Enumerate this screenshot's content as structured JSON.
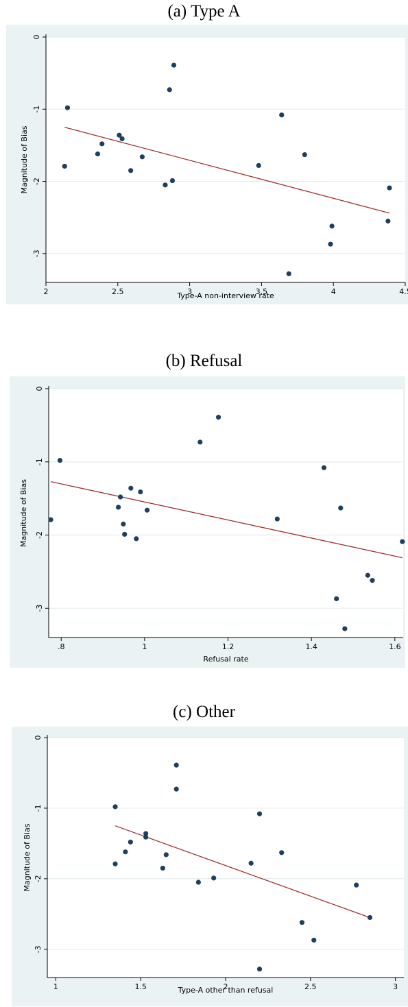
{
  "chart_data": [
    {
      "type": "scatter",
      "title": "(a) Type A",
      "xlabel": "Type-A non-interview rate",
      "ylabel": "Magnitude of Bias",
      "xlim": [
        2,
        4.5
      ],
      "ylim": [
        -3.4,
        0
      ],
      "xticks": [
        "2",
        "2.5",
        "3",
        "3.5",
        "4",
        "4.5"
      ],
      "xtick_values": [
        2,
        2.5,
        3,
        3.5,
        4,
        4.5
      ],
      "yticks": [
        "0",
        "-1",
        "-2",
        "-3"
      ],
      "ytick_values": [
        0,
        -1,
        -2,
        -3
      ],
      "grid": true,
      "points": [
        {
          "x": 2.13,
          "y": -1.79
        },
        {
          "x": 2.15,
          "y": -0.98
        },
        {
          "x": 2.36,
          "y": -1.62
        },
        {
          "x": 2.39,
          "y": -1.48
        },
        {
          "x": 2.51,
          "y": -1.36
        },
        {
          "x": 2.53,
          "y": -1.41
        },
        {
          "x": 2.59,
          "y": -1.85
        },
        {
          "x": 2.67,
          "y": -1.66
        },
        {
          "x": 2.83,
          "y": -2.05
        },
        {
          "x": 2.86,
          "y": -0.73
        },
        {
          "x": 2.88,
          "y": -1.99
        },
        {
          "x": 2.89,
          "y": -0.39
        },
        {
          "x": 3.48,
          "y": -1.78
        },
        {
          "x": 3.64,
          "y": -1.08
        },
        {
          "x": 3.69,
          "y": -3.28
        },
        {
          "x": 3.8,
          "y": -1.63
        },
        {
          "x": 3.98,
          "y": -2.87
        },
        {
          "x": 3.99,
          "y": -2.62
        },
        {
          "x": 4.38,
          "y": -2.55
        },
        {
          "x": 4.39,
          "y": -2.09
        }
      ],
      "fit_line": {
        "x": [
          2.13,
          4.39
        ],
        "y": [
          -1.25,
          -2.44
        ]
      },
      "colors": {
        "point": "#1f3f5f",
        "fit": "#a0322d",
        "grid": "#ffffff",
        "plot_bg": "#ffffff",
        "frame_bg": "#eaf2f3"
      }
    },
    {
      "type": "scatter",
      "title": "(b) Refusal",
      "xlabel": "Refusal rate",
      "ylabel": "Magnitude of Bias",
      "xlim": [
        0.77,
        1.62
      ],
      "ylim": [
        -3.4,
        0
      ],
      "xticks": [
        ".8",
        "1",
        "1.2",
        "1.4",
        "1.6"
      ],
      "xtick_values": [
        0.8,
        1,
        1.2,
        1.4,
        1.6
      ],
      "yticks": [
        "0",
        "-1",
        "-2",
        "-3"
      ],
      "ytick_values": [
        0,
        -1,
        -2,
        -3
      ],
      "grid": true,
      "points": [
        {
          "x": 0.775,
          "y": -1.79
        },
        {
          "x": 0.797,
          "y": -0.98
        },
        {
          "x": 0.937,
          "y": -1.62
        },
        {
          "x": 0.942,
          "y": -1.48
        },
        {
          "x": 0.949,
          "y": -1.85
        },
        {
          "x": 0.952,
          "y": -1.99
        },
        {
          "x": 0.967,
          "y": -1.36
        },
        {
          "x": 0.98,
          "y": -2.05
        },
        {
          "x": 0.99,
          "y": -1.41
        },
        {
          "x": 1.006,
          "y": -1.66
        },
        {
          "x": 1.133,
          "y": -0.73
        },
        {
          "x": 1.177,
          "y": -0.39
        },
        {
          "x": 1.318,
          "y": -1.78
        },
        {
          "x": 1.43,
          "y": -1.08
        },
        {
          "x": 1.46,
          "y": -2.87
        },
        {
          "x": 1.47,
          "y": -1.63
        },
        {
          "x": 1.48,
          "y": -3.28
        },
        {
          "x": 1.535,
          "y": -2.55
        },
        {
          "x": 1.546,
          "y": -2.62
        },
        {
          "x": 1.618,
          "y": -2.09
        }
      ],
      "fit_line": {
        "x": [
          0.775,
          1.618
        ],
        "y": [
          -1.27,
          -2.31
        ]
      },
      "colors": {
        "point": "#1f3f5f",
        "fit": "#a0322d",
        "grid": "#ffffff",
        "plot_bg": "#ffffff",
        "frame_bg": "#eaf2f3"
      }
    },
    {
      "type": "scatter",
      "title": "(c) Other",
      "xlabel": "Type-A other than refusal",
      "ylabel": "Magnitude of Bias",
      "xlim": [
        0.95,
        3.05
      ],
      "ylim": [
        -3.4,
        0
      ],
      "xticks": [
        "1",
        "1.5",
        "2",
        "2.5",
        "3"
      ],
      "xtick_values": [
        1,
        1.5,
        2,
        2.5,
        3
      ],
      "yticks": [
        "0",
        "-1",
        "-2",
        "-3"
      ],
      "ytick_values": [
        0,
        -1,
        -2,
        -3
      ],
      "grid": true,
      "points": [
        {
          "x": 1.35,
          "y": -0.98
        },
        {
          "x": 1.35,
          "y": -1.79
        },
        {
          "x": 1.41,
          "y": -1.62
        },
        {
          "x": 1.44,
          "y": -1.48
        },
        {
          "x": 1.53,
          "y": -1.36
        },
        {
          "x": 1.53,
          "y": -1.41
        },
        {
          "x": 1.63,
          "y": -1.85
        },
        {
          "x": 1.65,
          "y": -1.66
        },
        {
          "x": 1.71,
          "y": -0.39
        },
        {
          "x": 1.71,
          "y": -0.73
        },
        {
          "x": 1.84,
          "y": -2.05
        },
        {
          "x": 1.93,
          "y": -1.99
        },
        {
          "x": 2.15,
          "y": -1.78
        },
        {
          "x": 2.2,
          "y": -1.08
        },
        {
          "x": 2.2,
          "y": -3.28
        },
        {
          "x": 2.33,
          "y": -1.63
        },
        {
          "x": 2.45,
          "y": -2.62
        },
        {
          "x": 2.52,
          "y": -2.87
        },
        {
          "x": 2.77,
          "y": -2.09
        },
        {
          "x": 2.85,
          "y": -2.55
        }
      ],
      "fit_line": {
        "x": [
          1.35,
          2.85
        ],
        "y": [
          -1.25,
          -2.55
        ]
      },
      "colors": {
        "point": "#1f3f5f",
        "fit": "#a0322d",
        "grid": "#ffffff",
        "plot_bg": "#ffffff",
        "frame_bg": "#eaf2f3"
      }
    }
  ]
}
